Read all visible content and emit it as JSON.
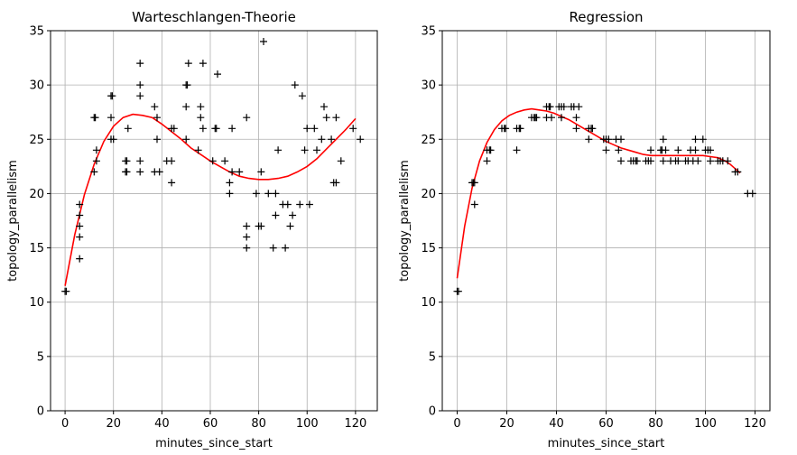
{
  "chart_data": [
    {
      "type": "scatter",
      "title": "Warteschlangen-Theorie",
      "xlabel": "minutes_since_start",
      "ylabel": "topology_parallelism",
      "xlim": [
        -6,
        129
      ],
      "ylim": [
        0,
        35
      ],
      "xticks": [
        0,
        20,
        40,
        60,
        80,
        100,
        120
      ],
      "yticks": [
        0,
        5,
        10,
        15,
        20,
        25,
        30,
        35
      ],
      "grid": true,
      "marker_color": "#000000",
      "fit_color": "#ff0000",
      "points": [
        [
          0,
          11
        ],
        [
          0.5,
          11
        ],
        [
          6,
          14
        ],
        [
          6,
          16
        ],
        [
          6,
          17
        ],
        [
          6,
          18
        ],
        [
          6,
          19
        ],
        [
          12,
          22
        ],
        [
          12,
          27
        ],
        [
          12.5,
          27
        ],
        [
          13,
          23
        ],
        [
          13,
          24
        ],
        [
          19,
          25
        ],
        [
          19,
          27
        ],
        [
          19,
          29
        ],
        [
          19.5,
          29
        ],
        [
          20,
          25
        ],
        [
          25,
          22
        ],
        [
          25,
          23
        ],
        [
          25.5,
          22
        ],
        [
          25.5,
          23
        ],
        [
          26,
          26
        ],
        [
          31,
          22
        ],
        [
          31,
          23
        ],
        [
          31,
          29
        ],
        [
          31,
          30
        ],
        [
          31,
          32
        ],
        [
          37,
          22
        ],
        [
          37,
          28
        ],
        [
          38,
          25
        ],
        [
          38,
          27
        ],
        [
          39,
          22
        ],
        [
          42,
          23
        ],
        [
          44,
          21
        ],
        [
          44,
          23
        ],
        [
          44,
          26
        ],
        [
          45,
          26
        ],
        [
          50,
          25
        ],
        [
          50,
          28
        ],
        [
          50,
          30
        ],
        [
          50.5,
          30
        ],
        [
          51,
          32
        ],
        [
          55,
          24
        ],
        [
          56,
          27
        ],
        [
          56,
          28
        ],
        [
          57,
          26
        ],
        [
          57,
          32
        ],
        [
          61,
          23
        ],
        [
          62,
          26
        ],
        [
          62.5,
          26
        ],
        [
          63,
          31
        ],
        [
          66,
          23
        ],
        [
          68,
          20
        ],
        [
          68,
          21
        ],
        [
          69,
          22
        ],
        [
          69,
          26
        ],
        [
          72,
          22
        ],
        [
          75,
          15
        ],
        [
          75,
          16
        ],
        [
          75,
          17
        ],
        [
          75,
          27
        ],
        [
          79,
          20
        ],
        [
          80,
          17
        ],
        [
          81,
          17
        ],
        [
          81,
          22
        ],
        [
          82,
          34
        ],
        [
          84,
          20
        ],
        [
          86,
          15
        ],
        [
          87,
          18
        ],
        [
          87,
          20
        ],
        [
          88,
          24
        ],
        [
          90,
          19
        ],
        [
          91,
          15
        ],
        [
          92,
          19
        ],
        [
          93,
          17
        ],
        [
          94,
          18
        ],
        [
          95,
          30
        ],
        [
          97,
          19
        ],
        [
          98,
          29
        ],
        [
          99,
          24
        ],
        [
          100,
          26
        ],
        [
          101,
          19
        ],
        [
          103,
          26
        ],
        [
          104,
          24
        ],
        [
          106,
          25
        ],
        [
          107,
          28
        ],
        [
          108,
          27
        ],
        [
          110,
          25
        ],
        [
          111,
          21
        ],
        [
          112,
          21
        ],
        [
          112,
          27
        ],
        [
          114,
          23
        ],
        [
          119,
          26
        ],
        [
          122,
          25
        ]
      ],
      "fit_curve": [
        [
          0,
          11.5
        ],
        [
          4,
          16.2
        ],
        [
          8,
          19.9
        ],
        [
          12,
          22.7
        ],
        [
          16,
          24.8
        ],
        [
          20,
          26.2
        ],
        [
          24,
          27
        ],
        [
          28,
          27.3
        ],
        [
          32,
          27.2
        ],
        [
          36,
          27
        ],
        [
          40,
          26.4
        ],
        [
          44,
          25.7
        ],
        [
          48,
          25
        ],
        [
          52,
          24.2
        ],
        [
          56,
          23.6
        ],
        [
          60,
          23
        ],
        [
          64,
          22.5
        ],
        [
          68,
          22
        ],
        [
          72,
          21.6
        ],
        [
          76,
          21.4
        ],
        [
          80,
          21.3
        ],
        [
          84,
          21.3
        ],
        [
          88,
          21.4
        ],
        [
          92,
          21.6
        ],
        [
          96,
          22
        ],
        [
          100,
          22.5
        ],
        [
          104,
          23.2
        ],
        [
          108,
          24.1
        ],
        [
          112,
          25
        ],
        [
          116,
          25.9
        ],
        [
          120,
          26.9
        ]
      ]
    },
    {
      "type": "scatter",
      "title": "Regression",
      "xlabel": "minutes_since_start",
      "ylabel": "topology_parallelism",
      "xlim": [
        -6,
        126
      ],
      "ylim": [
        0,
        35
      ],
      "xticks": [
        0,
        20,
        40,
        60,
        80,
        100,
        120
      ],
      "yticks": [
        0,
        5,
        10,
        15,
        20,
        25,
        30,
        35
      ],
      "grid": true,
      "marker_color": "#000000",
      "fit_color": "#ff0000",
      "points": [
        [
          0,
          11
        ],
        [
          0.5,
          11
        ],
        [
          6,
          21
        ],
        [
          6.5,
          21
        ],
        [
          7,
          19
        ],
        [
          7,
          21
        ],
        [
          12,
          23
        ],
        [
          12,
          24
        ],
        [
          13,
          24
        ],
        [
          13.5,
          24
        ],
        [
          18,
          26
        ],
        [
          19,
          26
        ],
        [
          19.5,
          26
        ],
        [
          24,
          24
        ],
        [
          24,
          26
        ],
        [
          25,
          26
        ],
        [
          25.5,
          26
        ],
        [
          30,
          27
        ],
        [
          31,
          27
        ],
        [
          31.5,
          27
        ],
        [
          32,
          27
        ],
        [
          36,
          27
        ],
        [
          36,
          28
        ],
        [
          37,
          28
        ],
        [
          37.5,
          28
        ],
        [
          38,
          27
        ],
        [
          41,
          28
        ],
        [
          42,
          27
        ],
        [
          42,
          28
        ],
        [
          43,
          28
        ],
        [
          46,
          28
        ],
        [
          47,
          28
        ],
        [
          48,
          26
        ],
        [
          48,
          27
        ],
        [
          49,
          28
        ],
        [
          53,
          25
        ],
        [
          53,
          26
        ],
        [
          54,
          26
        ],
        [
          54.5,
          26
        ],
        [
          59,
          25
        ],
        [
          60,
          24
        ],
        [
          60,
          25
        ],
        [
          61,
          25
        ],
        [
          64,
          25
        ],
        [
          65,
          24
        ],
        [
          66,
          23
        ],
        [
          66,
          25
        ],
        [
          70,
          23
        ],
        [
          71,
          23
        ],
        [
          72,
          23
        ],
        [
          72.5,
          23
        ],
        [
          76,
          23
        ],
        [
          77,
          23
        ],
        [
          78,
          23
        ],
        [
          78,
          24
        ],
        [
          82,
          24
        ],
        [
          82.5,
          24
        ],
        [
          83,
          23
        ],
        [
          83,
          25
        ],
        [
          84,
          24
        ],
        [
          86,
          23
        ],
        [
          88,
          23
        ],
        [
          89,
          23
        ],
        [
          89,
          24
        ],
        [
          92,
          23
        ],
        [
          93,
          23
        ],
        [
          94,
          24
        ],
        [
          95,
          23
        ],
        [
          96,
          24
        ],
        [
          96,
          25
        ],
        [
          97,
          23
        ],
        [
          99,
          25
        ],
        [
          100,
          24
        ],
        [
          101,
          24
        ],
        [
          102,
          23
        ],
        [
          102,
          24
        ],
        [
          105,
          23
        ],
        [
          106,
          23
        ],
        [
          107,
          23
        ],
        [
          109,
          23
        ],
        [
          112,
          22
        ],
        [
          113,
          22
        ],
        [
          117,
          20
        ],
        [
          119,
          20
        ]
      ],
      "fit_curve": [
        [
          0,
          12.2
        ],
        [
          3,
          17
        ],
        [
          6,
          20.5
        ],
        [
          9,
          23
        ],
        [
          12,
          24.7
        ],
        [
          15,
          25.9
        ],
        [
          18,
          26.7
        ],
        [
          21,
          27.2
        ],
        [
          24,
          27.5
        ],
        [
          27,
          27.7
        ],
        [
          30,
          27.8
        ],
        [
          33,
          27.7
        ],
        [
          36,
          27.6
        ],
        [
          39,
          27.4
        ],
        [
          42,
          27.1
        ],
        [
          45,
          26.8
        ],
        [
          48,
          26.4
        ],
        [
          51,
          26
        ],
        [
          54,
          25.6
        ],
        [
          57,
          25.2
        ],
        [
          60,
          24.8
        ],
        [
          63,
          24.5
        ],
        [
          66,
          24.2
        ],
        [
          69,
          24
        ],
        [
          72,
          23.8
        ],
        [
          75,
          23.6
        ],
        [
          78,
          23.5
        ],
        [
          81,
          23.5
        ],
        [
          84,
          23.5
        ],
        [
          87,
          23.5
        ],
        [
          90,
          23.5
        ],
        [
          93,
          23.5
        ],
        [
          96,
          23.5
        ],
        [
          99,
          23.5
        ],
        [
          102,
          23.4
        ],
        [
          105,
          23.3
        ],
        [
          108,
          23
        ],
        [
          110,
          22.7
        ],
        [
          112,
          22.3
        ],
        [
          114,
          21.9
        ]
      ]
    }
  ]
}
